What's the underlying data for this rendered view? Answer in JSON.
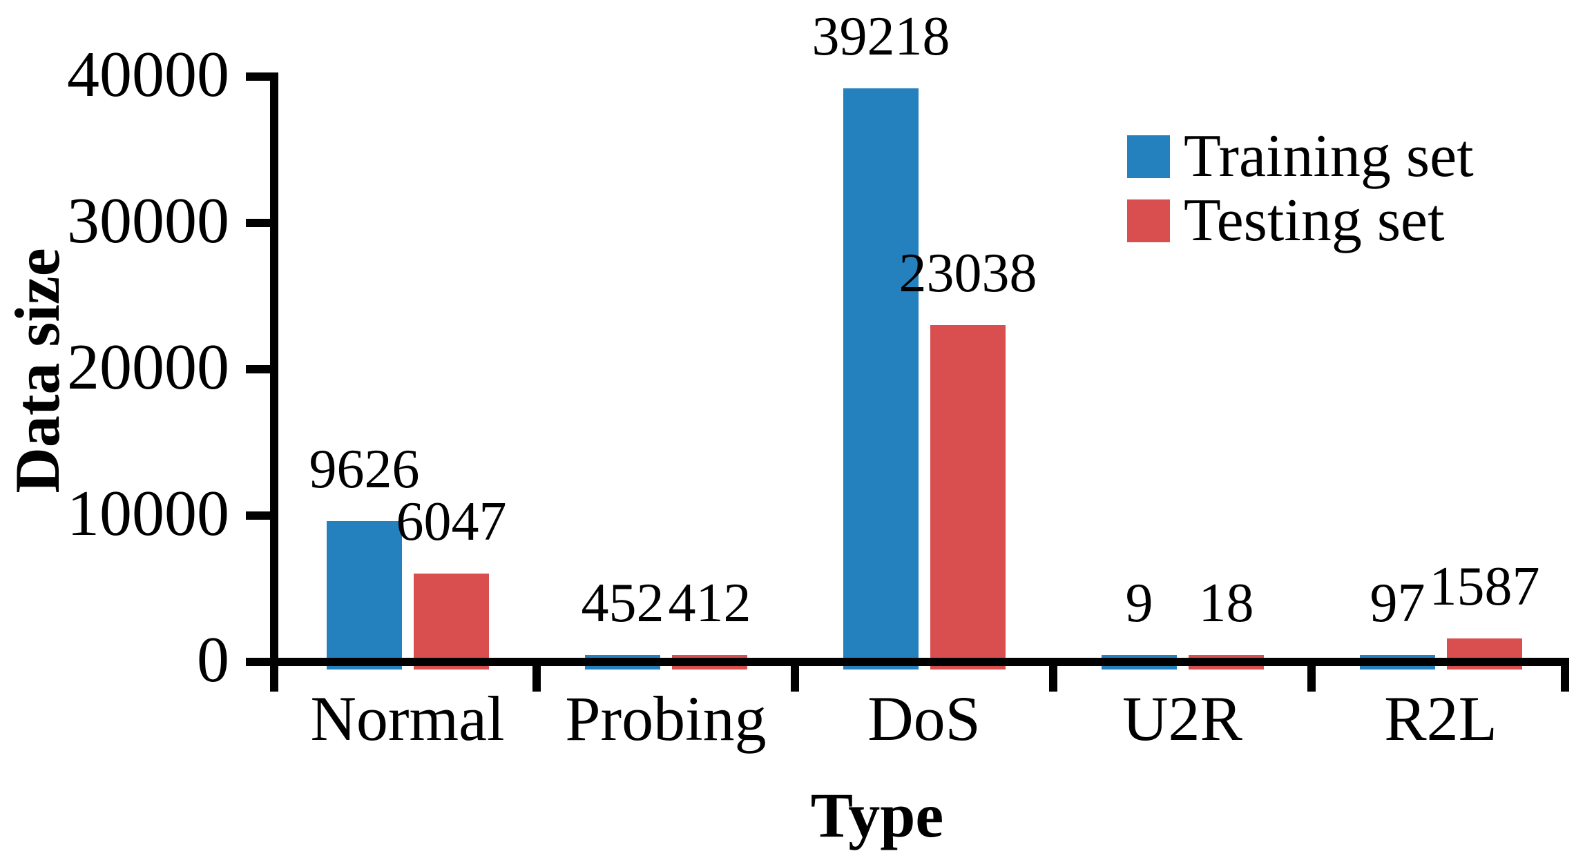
{
  "chart_data": {
    "type": "bar",
    "title": "",
    "xlabel": "Type",
    "ylabel": "Data size",
    "categories": [
      "Normal",
      "Probing",
      "DoS",
      "U2R",
      "R2L"
    ],
    "series": [
      {
        "name": "Training set",
        "color": "#2580BE",
        "values": [
          9626,
          452,
          39218,
          9,
          97
        ]
      },
      {
        "name": "Testing set",
        "color": "#D94F4F",
        "values": [
          6047,
          412,
          23038,
          18,
          1587
        ]
      }
    ],
    "data_labels": [
      "9626",
      "6047",
      "452",
      "412",
      "39218",
      "23038",
      "9",
      "18",
      "97",
      "1587"
    ],
    "y_ticks": [
      40000,
      30000,
      20000,
      10000,
      0
    ],
    "ylim": [
      0,
      40000
    ],
    "grid": false,
    "legend_position": "upper right",
    "axis_color": "#000000",
    "background_color": "#ffffff"
  }
}
